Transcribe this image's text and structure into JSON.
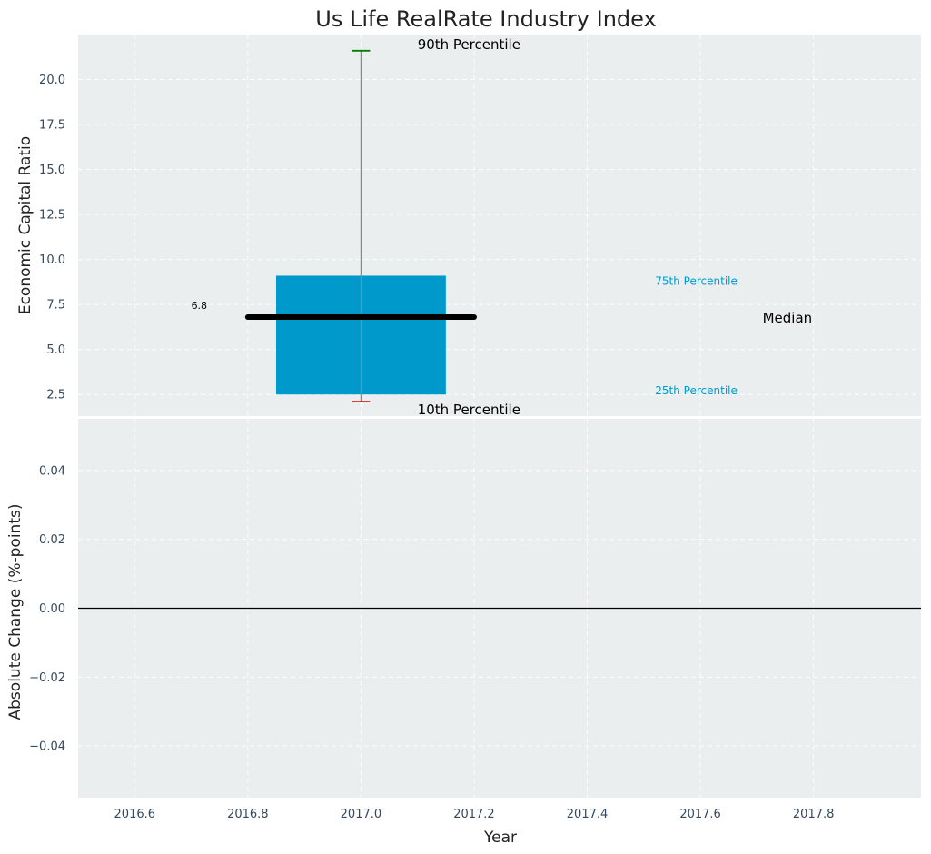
{
  "chart_data": [
    {
      "panel": "top",
      "type": "box",
      "title": "Us Life RealRate Industry Index",
      "xlabel": "",
      "ylabel": "Economic Capital Ratio",
      "xlim": [
        2016.5,
        2017.99
      ],
      "ylim": [
        1.3,
        22.5
      ],
      "yticks": [
        2.5,
        5.0,
        7.5,
        10.0,
        12.5,
        15.0,
        17.5,
        20.0
      ],
      "ytick_labels": [
        "2.5",
        "5.0",
        "7.5",
        "10.0",
        "12.5",
        "15.0",
        "17.5",
        "20.0"
      ],
      "box": {
        "x": 2017.0,
        "p10": 2.1,
        "p25": 2.5,
        "median": 6.8,
        "p75": 9.1,
        "p90": 21.6,
        "box_x_range": [
          2016.85,
          2017.15
        ],
        "median_x_range": [
          2016.8,
          2017.2
        ]
      },
      "median_label": "6.8",
      "annotations": {
        "p90": "90th Percentile",
        "p10": "10th Percentile",
        "p75": "75th Percentile",
        "p25": "25th Percentile",
        "median": "Median"
      },
      "colors": {
        "background": "#eaeeee",
        "box": "#0099cc",
        "median": "#000000",
        "whisker": "#888888",
        "p90_cap": "#008000",
        "p10_cap": "#e00000"
      },
      "grid": true
    },
    {
      "panel": "bottom",
      "type": "line",
      "xlabel": "Year",
      "ylabel": "Absolute Change (%-points)",
      "xlim": [
        2016.5,
        2017.99
      ],
      "ylim": [
        -0.055,
        0.055
      ],
      "xticks": [
        2016.6,
        2016.8,
        2017.0,
        2017.2,
        2017.4,
        2017.6,
        2017.8
      ],
      "xtick_labels": [
        "2016.6",
        "2016.8",
        "2017.0",
        "2017.2",
        "2017.4",
        "2017.6",
        "2017.8"
      ],
      "yticks": [
        -0.04,
        -0.02,
        0.0,
        0.02,
        0.04
      ],
      "ytick_labels": [
        "−0.04",
        "−0.02",
        "0.00",
        "0.02",
        "0.04"
      ],
      "zero_line": 0.0,
      "series": [],
      "grid": true
    }
  ]
}
